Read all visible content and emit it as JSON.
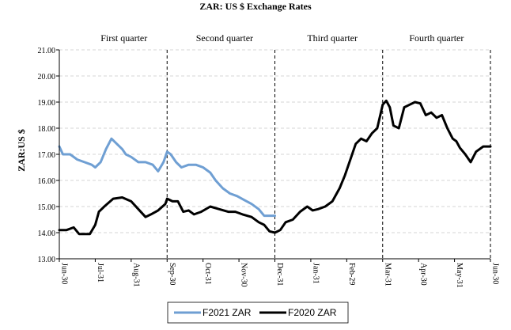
{
  "chart_data": {
    "type": "line",
    "title": "ZAR:  US $ Exchange  Rates",
    "ylabel": "ZAR:US $",
    "xlabel": "",
    "ylim": [
      13.0,
      21.0
    ],
    "yticks": [
      "13.00",
      "14.00",
      "15.00",
      "16.00",
      "17.00",
      "18.00",
      "19.00",
      "20.00",
      "21.00"
    ],
    "x_domain": [
      0,
      12
    ],
    "categories": [
      "Jun-30",
      "Jul-31",
      "Aug-31",
      "Sep-30",
      "Oct-31",
      "Nov-30",
      "Dec-31",
      "Jan-31",
      "Feb-29",
      "Mar-31",
      "Apr-30",
      "May-31",
      "Jun-30"
    ],
    "grid": "horizontal dashed",
    "quarter_dividers": [
      3,
      6,
      9,
      12
    ],
    "quarters": [
      {
        "label": "First  quarter",
        "center": 1.8
      },
      {
        "label": "Second quarter",
        "center": 4.6
      },
      {
        "label": "Third quarter",
        "center": 7.6
      },
      {
        "label": "Fourth quarter",
        "center": 10.5
      }
    ],
    "legend": {
      "placement": "bottom-center"
    },
    "series": [
      {
        "name": "F2021 ZAR",
        "color": "#6f9fd3",
        "x": [
          0,
          0.1,
          0.3,
          0.5,
          0.7,
          0.9,
          1.0,
          1.15,
          1.3,
          1.45,
          1.6,
          1.75,
          1.85,
          2.0,
          2.2,
          2.4,
          2.6,
          2.75,
          2.9,
          3.0,
          3.1,
          3.25,
          3.4,
          3.6,
          3.8,
          4.0,
          4.2,
          4.35,
          4.55,
          4.75,
          4.95,
          5.15,
          5.35,
          5.55,
          5.7,
          5.85,
          6.0
        ],
        "y": [
          17.3,
          17.0,
          17.0,
          16.8,
          16.7,
          16.6,
          16.5,
          16.7,
          17.2,
          17.6,
          17.4,
          17.2,
          17.0,
          16.9,
          16.7,
          16.7,
          16.6,
          16.35,
          16.7,
          17.1,
          17.0,
          16.7,
          16.5,
          16.6,
          16.6,
          16.5,
          16.3,
          16.0,
          15.7,
          15.5,
          15.4,
          15.25,
          15.1,
          14.9,
          14.65,
          14.65,
          14.65
        ]
      },
      {
        "name": "F2020 ZAR",
        "color": "#000000",
        "x": [
          0,
          0.2,
          0.4,
          0.55,
          0.7,
          0.85,
          1.0,
          1.1,
          1.25,
          1.5,
          1.75,
          2.0,
          2.2,
          2.4,
          2.55,
          2.75,
          2.95,
          3.0,
          3.15,
          3.3,
          3.45,
          3.6,
          3.75,
          3.95,
          4.2,
          4.45,
          4.7,
          4.9,
          5.1,
          5.35,
          5.55,
          5.7,
          5.85,
          6.0,
          6.15,
          6.3,
          6.5,
          6.7,
          6.9,
          7.05,
          7.2,
          7.4,
          7.6,
          7.8,
          7.95,
          8.1,
          8.25,
          8.4,
          8.55,
          8.7,
          8.85,
          9.0,
          9.1,
          9.2,
          9.3,
          9.45,
          9.6,
          9.75,
          9.9,
          10.05,
          10.2,
          10.35,
          10.5,
          10.65,
          10.8,
          10.95,
          11.05,
          11.15,
          11.3,
          11.45,
          11.6,
          11.8,
          12.0
        ],
        "y": [
          14.1,
          14.1,
          14.2,
          13.95,
          13.95,
          13.95,
          14.3,
          14.8,
          15.0,
          15.3,
          15.35,
          15.2,
          14.9,
          14.6,
          14.7,
          14.85,
          15.1,
          15.3,
          15.2,
          15.2,
          14.8,
          14.85,
          14.7,
          14.8,
          15.0,
          14.9,
          14.8,
          14.8,
          14.7,
          14.6,
          14.4,
          14.3,
          14.05,
          14.0,
          14.1,
          14.4,
          14.5,
          14.8,
          15.0,
          14.85,
          14.9,
          15.0,
          15.2,
          15.7,
          16.2,
          16.8,
          17.4,
          17.6,
          17.5,
          17.8,
          18.0,
          18.9,
          19.05,
          18.8,
          18.1,
          18.0,
          18.8,
          18.9,
          19.0,
          18.95,
          18.5,
          18.6,
          18.4,
          18.5,
          18.0,
          17.6,
          17.5,
          17.25,
          17.0,
          16.7,
          17.1,
          17.3,
          17.3
        ]
      }
    ]
  }
}
